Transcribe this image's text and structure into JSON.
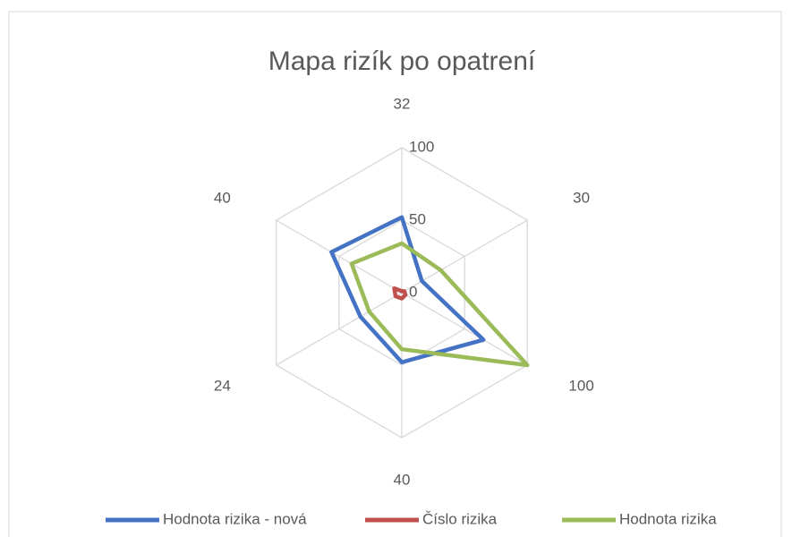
{
  "chart_data": {
    "type": "radar",
    "title": "Mapa rizík po opatrení",
    "categories": [
      "32",
      "30",
      "100",
      "40",
      "24",
      "40"
    ],
    "series": [
      {
        "name": "Hodnota rizika - nová",
        "color": "#4472c4",
        "values": [
          52,
          16,
          65,
          48,
          33,
          56
        ]
      },
      {
        "name": "Číslo rizika",
        "color": "#c0504d",
        "values": [
          1,
          2,
          3,
          4,
          5,
          6
        ]
      },
      {
        "name": "Hodnota rizika",
        "color": "#9bbb59",
        "values": [
          34,
          31,
          100,
          39,
          26,
          40
        ]
      }
    ],
    "ylim": [
      0,
      100
    ],
    "yticks": [
      0,
      50,
      100
    ],
    "grid": true,
    "legend": "bottom"
  }
}
